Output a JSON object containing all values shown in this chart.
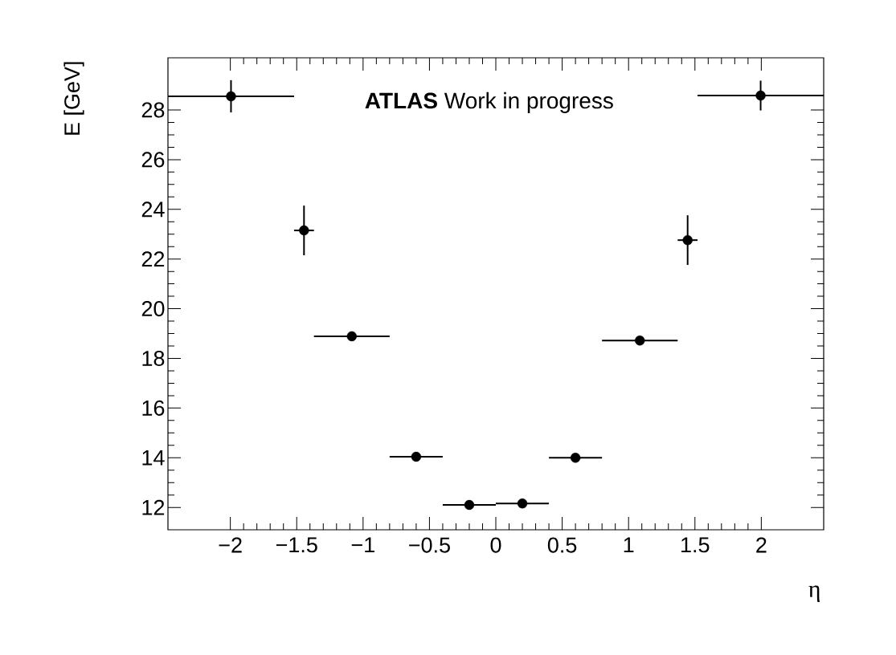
{
  "chart_data": {
    "type": "scatter",
    "xlabel": "η",
    "ylabel": "E [GeV]",
    "annotations": [
      "**ATLAS** Work in progress"
    ],
    "x": [
      -1.995,
      -1.445,
      -1.085,
      -0.6,
      -0.2,
      0.2,
      0.6,
      1.085,
      1.445,
      1.995
    ],
    "values": [
      28.55,
      23.15,
      18.89,
      14.04,
      12.1,
      12.16,
      14.0,
      18.72,
      22.76,
      28.58
    ],
    "errors": [
      0.65,
      1.0,
      0.12,
      0.05,
      0.05,
      0.05,
      0.05,
      0.12,
      1.0,
      0.6
    ],
    "xerrors": [
      0.475,
      0.075,
      0.285,
      0.2,
      0.2,
      0.2,
      0.2,
      0.285,
      0.075,
      0.475
    ],
    "color": "#000000",
    "marker": "circle",
    "xlim": [
      -2.47,
      2.47
    ],
    "ylim": [
      11.1,
      30.1
    ],
    "xticks": [
      {
        "value": -2,
        "label": "−2"
      },
      {
        "value": -1.5,
        "label": "−1.5"
      },
      {
        "value": -1,
        "label": "−1"
      },
      {
        "value": -0.5,
        "label": "−0.5"
      },
      0,
      0.5,
      1,
      1.5,
      2
    ],
    "yticks": [
      12,
      14,
      16,
      18,
      20,
      22,
      24,
      26,
      28
    ]
  }
}
